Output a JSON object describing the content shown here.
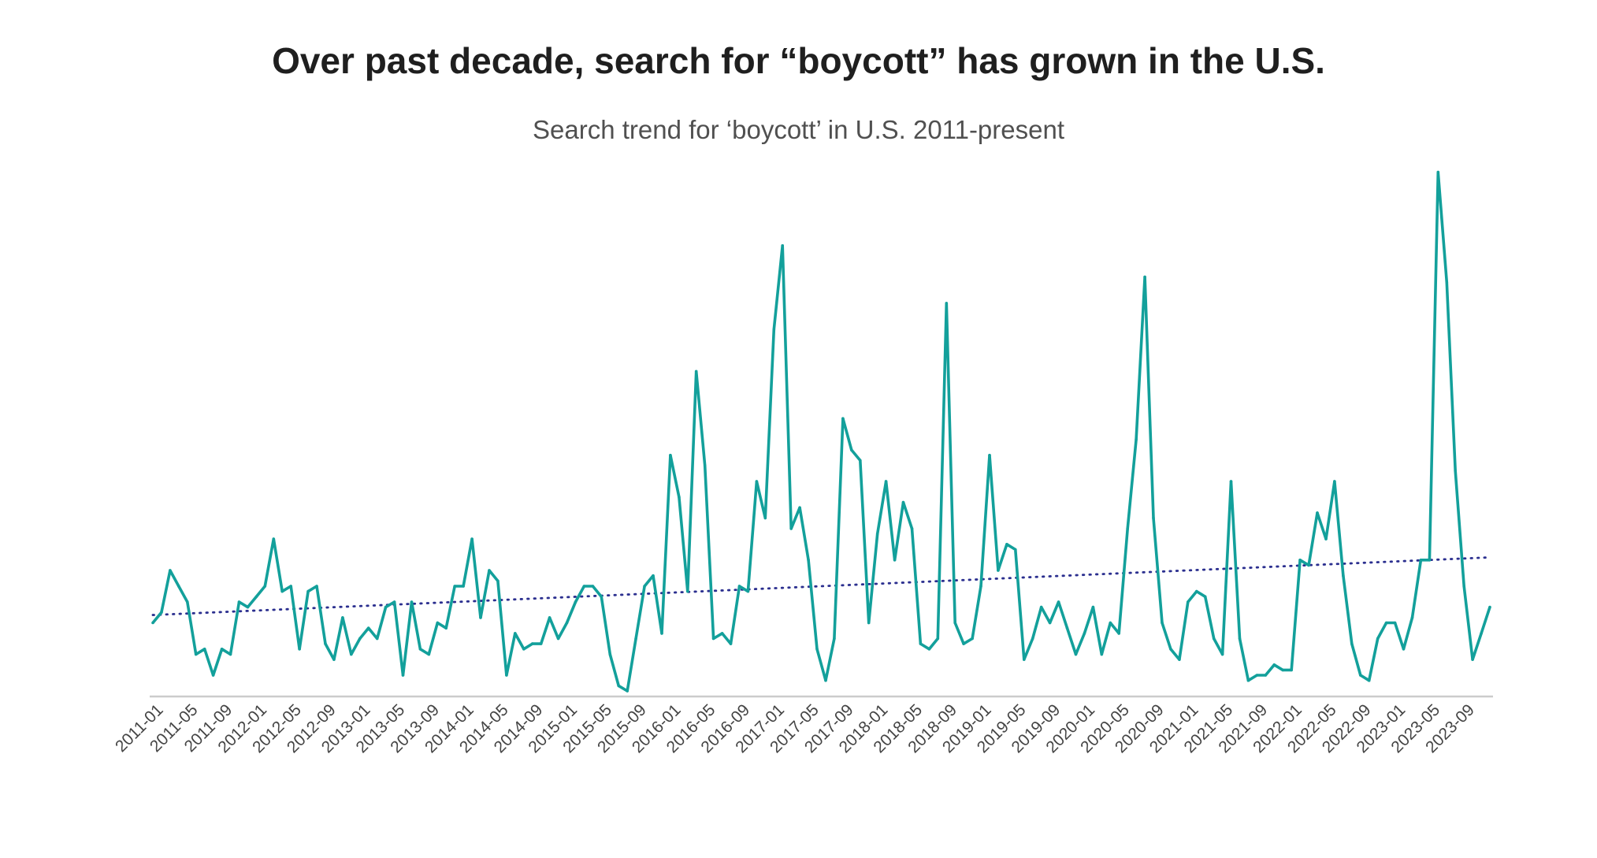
{
  "chart_data": {
    "type": "line",
    "title": "Over past decade, search for “boycott” has grown in the U.S.",
    "subtitle": "Search trend for ‘boycott’ in U.S. 2011-present",
    "xlabel": "",
    "ylabel": "",
    "ylim": [
      0,
      100
    ],
    "grid": false,
    "tick_labels": [
      "2011-01",
      "2011-05",
      "2011-09",
      "2012-01",
      "2012-05",
      "2012-09",
      "2013-01",
      "2013-05",
      "2013-09",
      "2014-01",
      "2014-05",
      "2014-09",
      "2015-01",
      "2015-05",
      "2015-09",
      "2016-01",
      "2016-05",
      "2016-09",
      "2017-01",
      "2017-05",
      "2017-09",
      "2018-01",
      "2018-05",
      "2018-09",
      "2019-01",
      "2019-05",
      "2019-09",
      "2020-01",
      "2020-05",
      "2020-09",
      "2021-01",
      "2021-05",
      "2021-09",
      "2022-01",
      "2022-05",
      "2022-09",
      "2023-01",
      "2023-05",
      "2023-09"
    ],
    "series": [
      {
        "name": "boycott",
        "color": "#13a09b",
        "style": "solid",
        "values": [
          13,
          15,
          23,
          20,
          17,
          7,
          8,
          3,
          8,
          7,
          17,
          16,
          18,
          20,
          29,
          19,
          20,
          8,
          19,
          20,
          9,
          6,
          14,
          7,
          10,
          12,
          10,
          16,
          17,
          3,
          17,
          8,
          7,
          13,
          12,
          20,
          20,
          29,
          14,
          23,
          21,
          3,
          11,
          8,
          9,
          9,
          14,
          10,
          13,
          17,
          20,
          20,
          18,
          7,
          1,
          0,
          10,
          20,
          22,
          11,
          45,
          37,
          19,
          61,
          43,
          10,
          11,
          9,
          20,
          19,
          40,
          33,
          69,
          85,
          31,
          35,
          25,
          8,
          2,
          10,
          52,
          46,
          44,
          13,
          30,
          40,
          25,
          36,
          31,
          9,
          8,
          10,
          74,
          13,
          9,
          10,
          20,
          45,
          23,
          28,
          27,
          6,
          10,
          16,
          13,
          17,
          12,
          7,
          11,
          16,
          7,
          13,
          11,
          31,
          48,
          79,
          33,
          13,
          8,
          6,
          17,
          19,
          18,
          10,
          7,
          40,
          10,
          2,
          3,
          3,
          5,
          4,
          4,
          25,
          24,
          34,
          29,
          40,
          22,
          9,
          3,
          2,
          10,
          13,
          13,
          8,
          14,
          25,
          25,
          99,
          78,
          42,
          20,
          6,
          11,
          16
        ],
        "trend": {
          "name": "trend",
          "color": "#2b2f8f",
          "style": "dotted",
          "start": 14.5,
          "end": 25.5
        }
      }
    ]
  }
}
